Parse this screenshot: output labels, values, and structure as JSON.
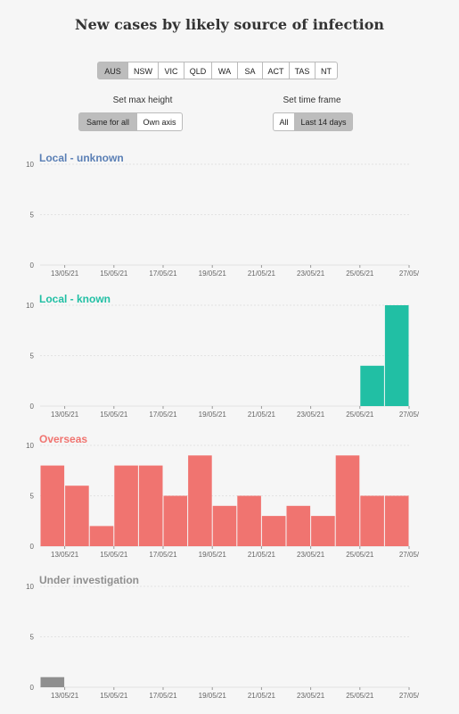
{
  "title": "New cases by likely source of infection",
  "regions": {
    "items": [
      "AUS",
      "NSW",
      "VIC",
      "QLD",
      "WA",
      "SA",
      "ACT",
      "TAS",
      "NT"
    ],
    "selected": "AUS"
  },
  "max_height": {
    "label": "Set max height",
    "options": [
      "Same for all",
      "Own axis"
    ],
    "selected": "Same for all"
  },
  "time_frame": {
    "label": "Set time frame",
    "options": [
      "All",
      "Last 14 days"
    ],
    "selected": "Last 14 days"
  },
  "colors": {
    "local_unknown": "#5a7fb5",
    "local_known": "#21bfa4",
    "overseas": "#f07470",
    "under_investigation": "#8f8f8f"
  },
  "chart_data": [
    {
      "type": "bar",
      "title": "Local - unknown",
      "x": [
        "12/05/21",
        "13/05/21",
        "14/05/21",
        "15/05/21",
        "16/05/21",
        "17/05/21",
        "18/05/21",
        "19/05/21",
        "20/05/21",
        "21/05/21",
        "22/05/21",
        "23/05/21",
        "24/05/21",
        "25/05/21",
        "26/05/21"
      ],
      "values": [
        0,
        0,
        0,
        0,
        0,
        0,
        0,
        0,
        0,
        0,
        0,
        0,
        0,
        0,
        0
      ],
      "xticks": [
        "13/05/21",
        "15/05/21",
        "17/05/21",
        "19/05/21",
        "21/05/21",
        "23/05/21",
        "25/05/21",
        "27/05/"
      ],
      "yticks": [
        0,
        5,
        10
      ],
      "ylim": [
        0,
        10
      ],
      "grid": true
    },
    {
      "type": "bar",
      "title": "Local - known",
      "x": [
        "12/05/21",
        "13/05/21",
        "14/05/21",
        "15/05/21",
        "16/05/21",
        "17/05/21",
        "18/05/21",
        "19/05/21",
        "20/05/21",
        "21/05/21",
        "22/05/21",
        "23/05/21",
        "24/05/21",
        "25/05/21",
        "26/05/21"
      ],
      "values": [
        0,
        0,
        0,
        0,
        0,
        0,
        0,
        0,
        0,
        0,
        0,
        0,
        0,
        4,
        10
      ],
      "xticks": [
        "13/05/21",
        "15/05/21",
        "17/05/21",
        "19/05/21",
        "21/05/21",
        "23/05/21",
        "25/05/21",
        "27/05/"
      ],
      "yticks": [
        0,
        5,
        10
      ],
      "ylim": [
        0,
        10
      ],
      "grid": true
    },
    {
      "type": "bar",
      "title": "Overseas",
      "x": [
        "12/05/21",
        "13/05/21",
        "14/05/21",
        "15/05/21",
        "16/05/21",
        "17/05/21",
        "18/05/21",
        "19/05/21",
        "20/05/21",
        "21/05/21",
        "22/05/21",
        "23/05/21",
        "24/05/21",
        "25/05/21",
        "26/05/21"
      ],
      "values": [
        8,
        6,
        2,
        8,
        8,
        5,
        9,
        4,
        5,
        3,
        4,
        3,
        9,
        5,
        5
      ],
      "xticks": [
        "13/05/21",
        "15/05/21",
        "17/05/21",
        "19/05/21",
        "21/05/21",
        "23/05/21",
        "25/05/21",
        "27/05/"
      ],
      "yticks": [
        0,
        5,
        10
      ],
      "ylim": [
        0,
        10
      ],
      "grid": true
    },
    {
      "type": "bar",
      "title": "Under investigation",
      "x": [
        "12/05/21",
        "13/05/21",
        "14/05/21",
        "15/05/21",
        "16/05/21",
        "17/05/21",
        "18/05/21",
        "19/05/21",
        "20/05/21",
        "21/05/21",
        "22/05/21",
        "23/05/21",
        "24/05/21",
        "25/05/21",
        "26/05/21"
      ],
      "values": [
        1,
        0,
        0,
        0,
        0,
        0,
        0,
        0,
        0,
        0,
        0,
        0,
        0,
        0,
        0
      ],
      "xticks": [
        "13/05/21",
        "15/05/21",
        "17/05/21",
        "19/05/21",
        "21/05/21",
        "23/05/21",
        "25/05/21",
        "27/05/"
      ],
      "yticks": [
        0,
        5,
        10
      ],
      "ylim": [
        0,
        10
      ],
      "grid": true
    }
  ]
}
